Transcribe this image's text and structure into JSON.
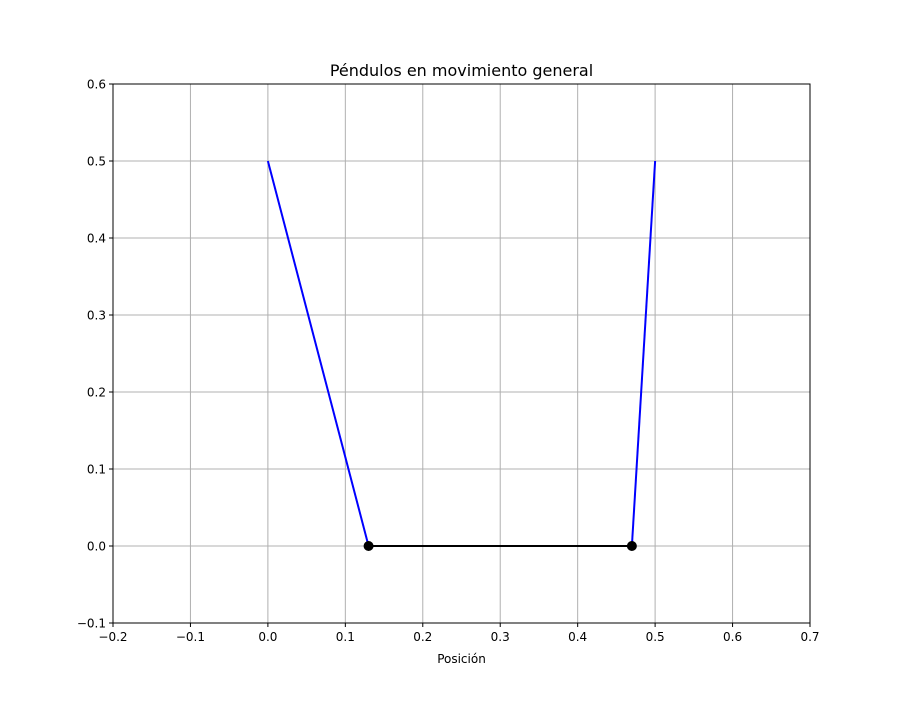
{
  "chart_data": {
    "type": "line",
    "title": "Péndulos en movimiento general",
    "xlabel": "Posición",
    "ylabel": "",
    "xlim": [
      -0.2,
      0.7
    ],
    "ylim": [
      -0.1,
      0.6
    ],
    "x_ticks": [
      "−0.2",
      "−0.1",
      "0.0",
      "0.1",
      "0.2",
      "0.3",
      "0.4",
      "0.5",
      "0.6",
      "0.7"
    ],
    "y_ticks": [
      "−0.1",
      "0.0",
      "0.1",
      "0.2",
      "0.3",
      "0.4",
      "0.5",
      "0.6"
    ],
    "grid": true,
    "series": [
      {
        "color": "#0000ff",
        "x": [
          0.0,
          0.13
        ],
        "y": [
          0.5,
          0.0
        ]
      },
      {
        "color": "#0000ff",
        "x": [
          0.5,
          0.47
        ],
        "y": [
          0.5,
          0.0
        ]
      },
      {
        "color": "#000000",
        "x": [
          0.13,
          0.47
        ],
        "y": [
          0.0,
          0.0
        ]
      }
    ],
    "points": [
      {
        "x": 0.13,
        "y": 0.0,
        "color": "#000000"
      },
      {
        "x": 0.47,
        "y": 0.0,
        "color": "#000000"
      }
    ],
    "colors": {
      "grid": "#b0b0b0",
      "axes": "#000000",
      "pendulum_rod": "#0000ff",
      "coupling_spring": "#000000",
      "bob": "#000000"
    }
  }
}
